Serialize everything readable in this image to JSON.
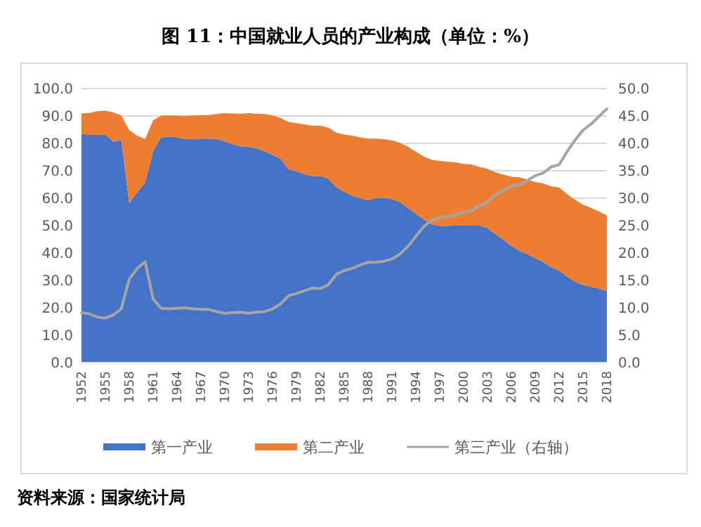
{
  "chart_data": {
    "type": "area",
    "title": "图 11：中国就业人员的产业构成（单位：%）",
    "stacked": true,
    "grid": "y",
    "legend": "bottom",
    "annotations": [
      "资料来源：国家统计局"
    ],
    "x": [
      1952,
      1953,
      1954,
      1955,
      1956,
      1957,
      1958,
      1959,
      1960,
      1961,
      1962,
      1963,
      1964,
      1965,
      1966,
      1967,
      1968,
      1969,
      1970,
      1971,
      1972,
      1973,
      1974,
      1975,
      1976,
      1977,
      1978,
      1979,
      1980,
      1981,
      1982,
      1983,
      1984,
      1985,
      1986,
      1987,
      1988,
      1989,
      1990,
      1991,
      1992,
      1993,
      1994,
      1995,
      1996,
      1997,
      1998,
      1999,
      2000,
      2001,
      2002,
      2003,
      2004,
      2005,
      2006,
      2007,
      2008,
      2009,
      2010,
      2011,
      2012,
      2013,
      2014,
      2015,
      2016,
      2017,
      2018
    ],
    "xlim": [
      1952,
      2018
    ],
    "xticks": [
      1952,
      1955,
      1958,
      1961,
      1964,
      1967,
      1970,
      1973,
      1976,
      1979,
      1982,
      1985,
      1988,
      1991,
      1994,
      1997,
      2000,
      2003,
      2006,
      2009,
      2012,
      2015,
      2018
    ],
    "ylim": [
      0,
      100
    ],
    "yticks": [
      {
        "value": 0,
        "label": "0.0"
      },
      {
        "value": 10,
        "label": "10.0"
      },
      {
        "value": 20,
        "label": "20.0"
      },
      {
        "value": 30,
        "label": "30.0"
      },
      {
        "value": 40,
        "label": "40.0"
      },
      {
        "value": 50,
        "label": "50.0"
      },
      {
        "value": 60,
        "label": "60.0"
      },
      {
        "value": 70,
        "label": "70.0"
      },
      {
        "value": 80,
        "label": "80.0"
      },
      {
        "value": 90,
        "label": "90.0"
      },
      {
        "value": 100,
        "label": "100.0"
      }
    ],
    "y2lim": [
      0,
      50
    ],
    "y2ticks": [
      {
        "value": 0,
        "label": "0.0"
      },
      {
        "value": 5,
        "label": "5.0"
      },
      {
        "value": 10,
        "label": "10.0"
      },
      {
        "value": 15,
        "label": "15.0"
      },
      {
        "value": 20,
        "label": "20.0"
      },
      {
        "value": 25,
        "label": "25.0"
      },
      {
        "value": 30,
        "label": "30.0"
      },
      {
        "value": 35,
        "label": "35.0"
      },
      {
        "value": 40,
        "label": "40.0"
      },
      {
        "value": 45,
        "label": "45.0"
      },
      {
        "value": 50,
        "label": "50.0"
      }
    ],
    "series": [
      {
        "name": "第一产业",
        "color": "#4472c4",
        "values": [
          83.5,
          83.1,
          83.1,
          83.3,
          80.6,
          81.2,
          58.2,
          62.2,
          65.7,
          77.2,
          82.1,
          82.5,
          82.2,
          81.6,
          81.5,
          81.7,
          81.7,
          81.6,
          80.8,
          79.7,
          78.9,
          78.7,
          78.2,
          77.2,
          75.8,
          74.5,
          70.5,
          69.8,
          68.7,
          68.1,
          68.1,
          67.1,
          64.0,
          62.4,
          60.9,
          60.0,
          59.3,
          60.1,
          60.1,
          59.7,
          58.5,
          56.4,
          54.3,
          52.2,
          50.5,
          49.9,
          49.8,
          50.1,
          50.0,
          50.0,
          50.0,
          49.1,
          46.9,
          44.8,
          42.6,
          40.8,
          39.6,
          38.1,
          36.7,
          34.8,
          33.6,
          31.4,
          29.5,
          28.3,
          27.7,
          27.0,
          26.1
        ]
      },
      {
        "name": "第二产业",
        "color": "#ed7d31",
        "values": [
          7.4,
          8.0,
          8.6,
          8.6,
          10.7,
          9.0,
          26.6,
          20.6,
          15.9,
          11.2,
          8.0,
          7.7,
          7.9,
          8.4,
          8.7,
          8.6,
          8.6,
          9.1,
          10.2,
          11.2,
          11.9,
          12.3,
          12.6,
          13.5,
          14.4,
          14.8,
          17.3,
          17.6,
          18.2,
          18.3,
          18.4,
          18.7,
          19.9,
          20.8,
          21.9,
          22.2,
          22.4,
          21.6,
          21.4,
          21.4,
          21.7,
          22.4,
          22.7,
          23.0,
          23.5,
          23.7,
          23.5,
          23.0,
          22.5,
          22.3,
          21.4,
          21.6,
          22.5,
          23.8,
          25.2,
          26.8,
          27.2,
          27.8,
          28.7,
          29.5,
          30.3,
          30.1,
          29.9,
          29.3,
          28.8,
          28.1,
          27.6
        ]
      },
      {
        "name": "第三产业（右轴）",
        "type": "line",
        "axis": "y2",
        "color": "#a5a5a5",
        "values": [
          9.1,
          8.9,
          8.3,
          8.1,
          8.7,
          9.8,
          15.2,
          17.2,
          18.4,
          11.6,
          9.9,
          9.8,
          9.9,
          10.0,
          9.8,
          9.7,
          9.7,
          9.3,
          9.0,
          9.1,
          9.2,
          9.0,
          9.2,
          9.3,
          9.8,
          10.7,
          12.2,
          12.6,
          13.1,
          13.6,
          13.5,
          14.2,
          16.1,
          16.8,
          17.2,
          17.8,
          18.3,
          18.3,
          18.5,
          18.9,
          19.8,
          21.2,
          23.0,
          24.8,
          26.0,
          26.4,
          26.7,
          26.9,
          27.5,
          27.7,
          28.6,
          29.3,
          30.6,
          31.4,
          32.2,
          32.4,
          33.2,
          34.1,
          34.6,
          35.7,
          36.1,
          38.5,
          40.6,
          42.4,
          43.5,
          44.9,
          46.3
        ]
      }
    ]
  }
}
